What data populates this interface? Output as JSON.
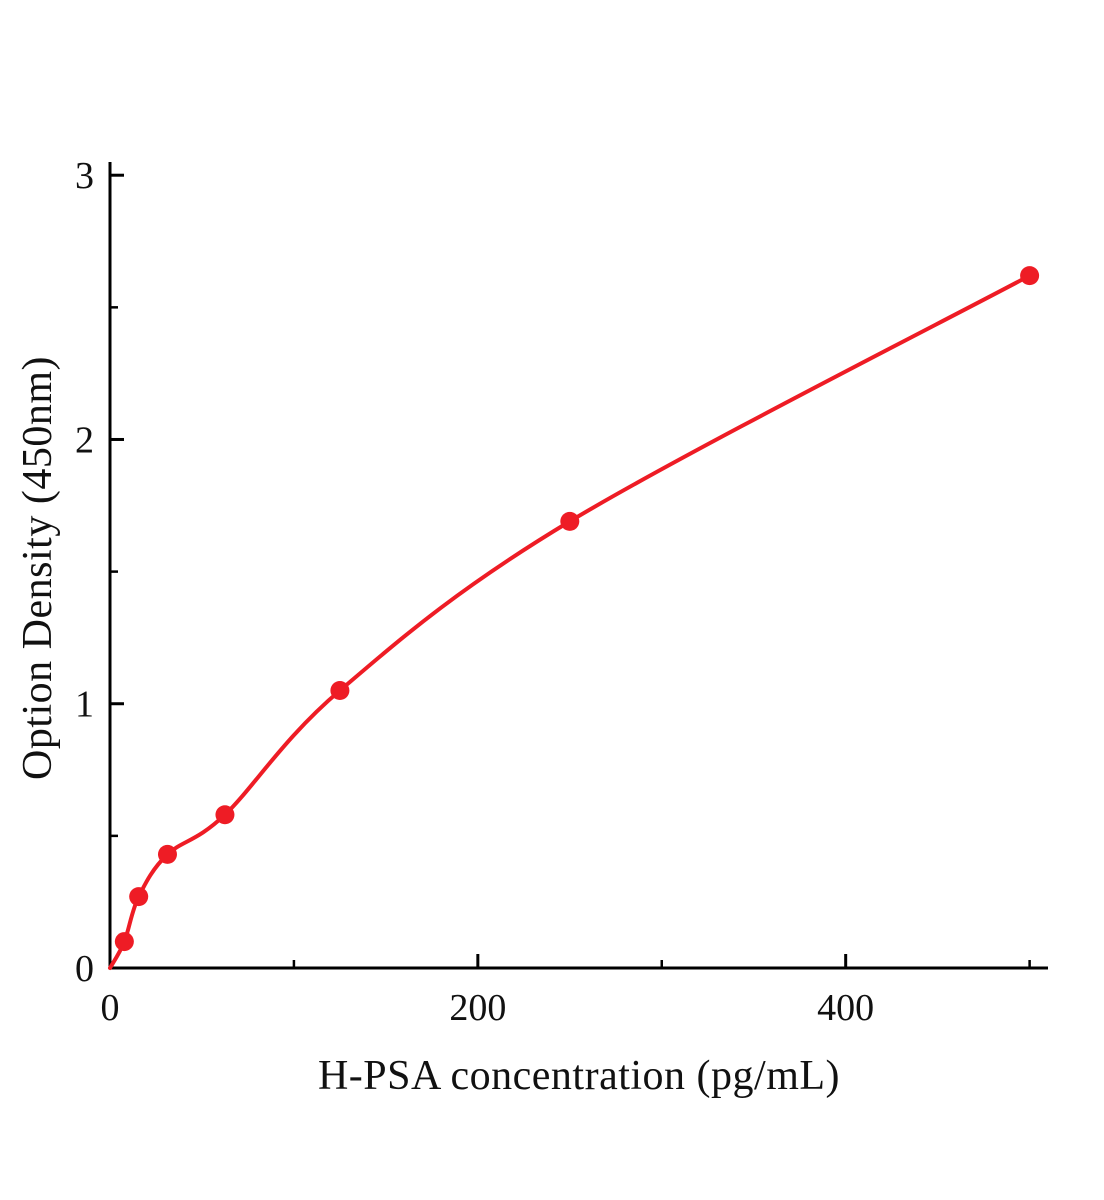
{
  "figure": {
    "background": "#ffffff",
    "accent_color": "#ee1c25",
    "axis_color": "#000000",
    "text_color": "#111111"
  },
  "chart_data": {
    "type": "scatter",
    "title": "",
    "xlabel": "H-PSA concentration (pg/mL)",
    "ylabel": "Option Density (450nm)",
    "x": [
      7.8,
      15.6,
      31.25,
      62.5,
      125,
      250,
      500
    ],
    "y": [
      0.1,
      0.27,
      0.43,
      0.58,
      1.05,
      1.69,
      2.62
    ],
    "curve_starts_at_origin": true,
    "xlim": [
      0,
      510
    ],
    "ylim": [
      0,
      3.05
    ],
    "xticks": [
      0,
      200,
      400
    ],
    "yticks": [
      0,
      1,
      2,
      3
    ],
    "x_minor_ticks": [
      100,
      300,
      500
    ],
    "y_minor_ticks": [
      0.5,
      1.5,
      2.5
    ],
    "grid": false,
    "legend": false,
    "marker": {
      "shape": "circle",
      "radius": 9.5,
      "color": "#ee1c25"
    },
    "line": {
      "color": "#ee1c25",
      "width": 4
    }
  }
}
